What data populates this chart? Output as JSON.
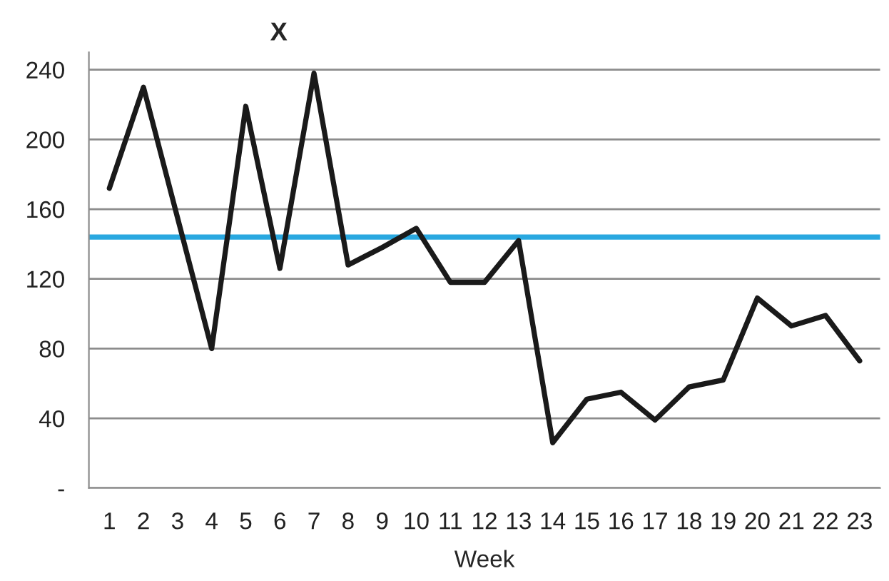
{
  "chart_data": {
    "type": "line",
    "title": "X",
    "xlabel": "Week",
    "categories": [
      "1",
      "2",
      "3",
      "4",
      "5",
      "6",
      "7",
      "8",
      "9",
      "10",
      "11",
      "12",
      "13",
      "14",
      "15",
      "16",
      "17",
      "18",
      "19",
      "20",
      "21",
      "22",
      "23"
    ],
    "series": [
      {
        "color": "#1a1a1a",
        "values": [
          172,
          230,
          155,
          80,
          219,
          126,
          238,
          128,
          138,
          149,
          118,
          118,
          142,
          26,
          51,
          55,
          39,
          58,
          62,
          109,
          93,
          99,
          73
        ]
      }
    ],
    "ylim": [
      0,
      250
    ],
    "yticks": [
      {
        "value": 0,
        "label": "-"
      },
      40,
      80,
      120,
      160,
      200,
      240
    ],
    "ref_lines": [
      {
        "axis": "y",
        "value": 144,
        "color": "#29a8e0"
      }
    ],
    "grid": "y",
    "legend": false,
    "marker": "none",
    "line_style": "solid"
  }
}
